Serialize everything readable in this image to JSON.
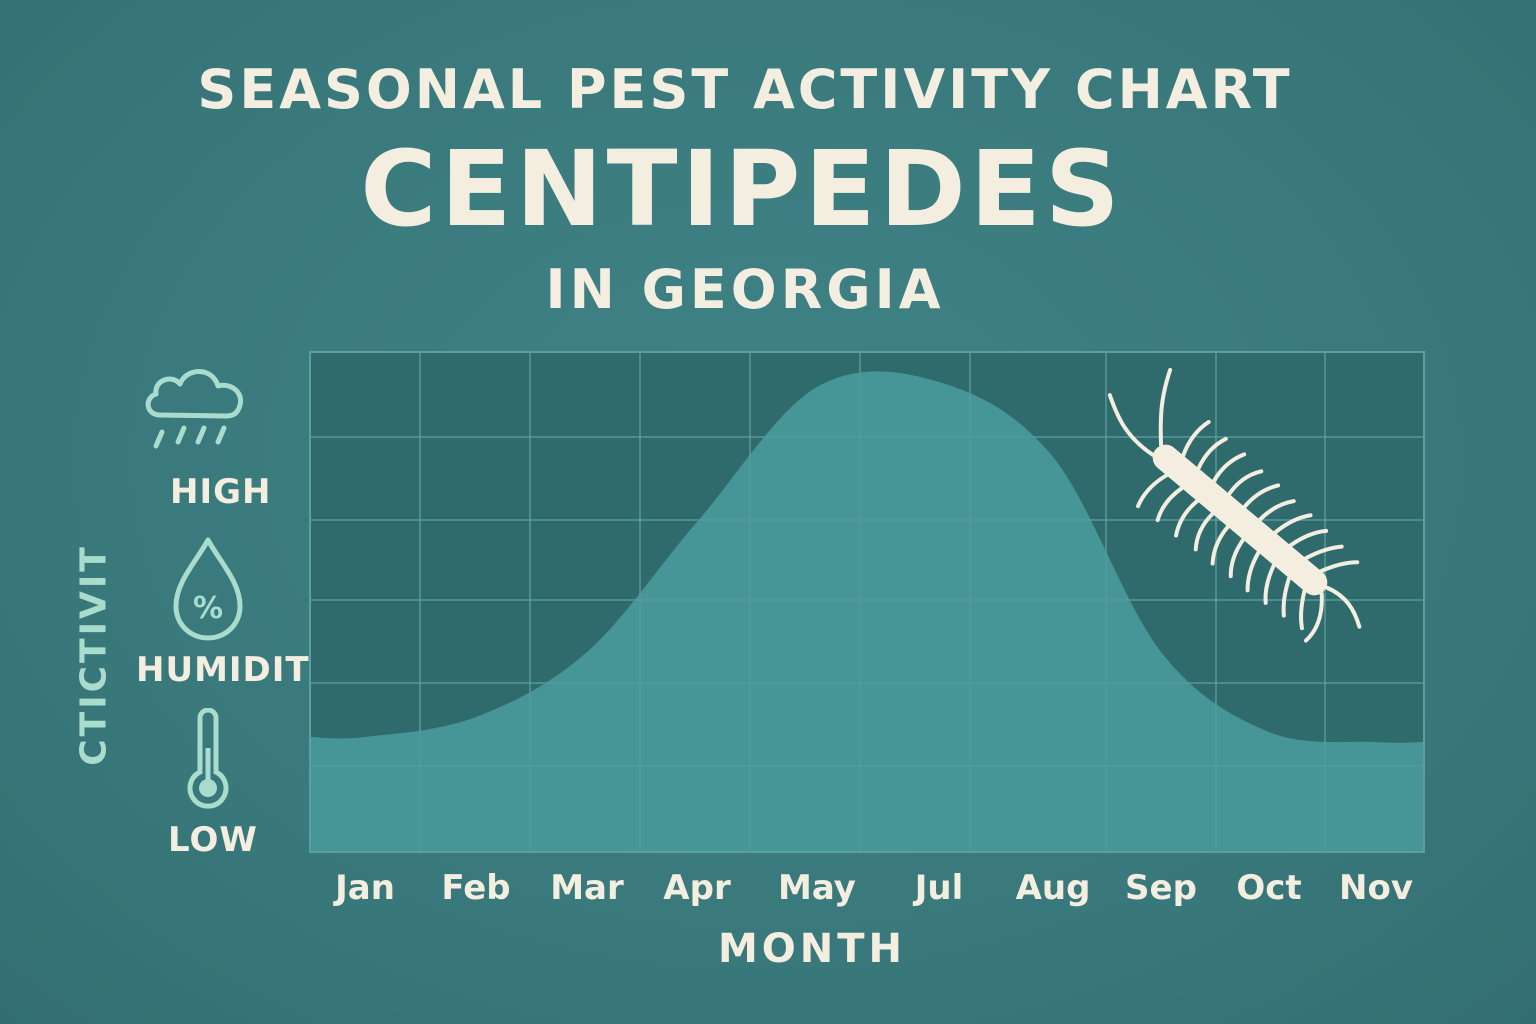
{
  "title": "SEASONAL PEST ACTIVITY CHART",
  "subject": "CENTIPEDES",
  "region": "IN GEORGIA",
  "colors": {
    "background": "#3a7b7e",
    "plot_background": "#2f6a6d",
    "area_fill": "#4a9a9b",
    "text": "#f3eedf",
    "ylabel_text": "#a9dccd",
    "icon_stroke": "#a9dccd"
  },
  "legend": {
    "items": [
      {
        "icon": "rain-cloud-icon",
        "label": "HIGH"
      },
      {
        "icon": "humidity-drop-icon",
        "label": "HUMIDIT"
      },
      {
        "icon": "thermometer-icon",
        "label": "LOW"
      }
    ]
  },
  "illustration": {
    "icon": "centipede-icon"
  },
  "chart_data": {
    "type": "area",
    "x": [
      "Jan",
      "Feb",
      "Mar",
      "Apr",
      "May",
      "Jul",
      "Aug",
      "Sep",
      "Oct",
      "Nov"
    ],
    "values": [
      23,
      27,
      40,
      66,
      93,
      94,
      79,
      40,
      24,
      22
    ],
    "xlabel": "MONTH",
    "ylabel": "CTICTIVIT",
    "ylim": [
      0,
      100
    ],
    "grid": true
  }
}
